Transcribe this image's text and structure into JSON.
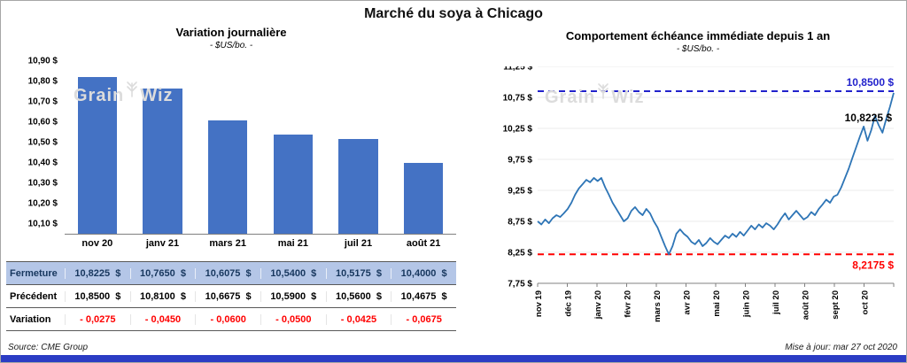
{
  "header": {
    "title": "Marché du soya à Chicago"
  },
  "watermark": {
    "part1": "Grain",
    "part2": "Wiz"
  },
  "colors": {
    "bar": "#4472C4",
    "line": "#2E75B6",
    "ref_high": "#2222CC",
    "ref_low": "#FF0000",
    "table_highlight_bg": "#B4C6E7",
    "table_highlight_text": "#17375E",
    "variation_text": "#FF0000",
    "bottom_bar": "#2B3CC4",
    "watermark": "#DCDCDC"
  },
  "left_panel": {
    "title": "Variation journalière",
    "subtitle": "- $US/bo. -",
    "table": {
      "header": [
        "nov 20",
        "janv 21",
        "mars 21",
        "mai 21",
        "juil 21",
        "août 21"
      ],
      "rows": [
        {
          "label": "Fermeture",
          "style": "highlight",
          "values": [
            "10,8225  $",
            "10,7650  $",
            "10,6075  $",
            "10,5400  $",
            "10,5175  $",
            "10,4000  $"
          ]
        },
        {
          "label": "Précédent",
          "style": "normal",
          "values": [
            "10,8500  $",
            "10,8100  $",
            "10,6675  $",
            "10,5900  $",
            "10,5600  $",
            "10,4675  $"
          ]
        },
        {
          "label": "Variation",
          "style": "negative",
          "values": [
            "- 0,0275",
            "- 0,0450",
            "- 0,0600",
            "- 0,0500",
            "- 0,0425",
            "- 0,0675"
          ]
        }
      ]
    }
  },
  "right_panel": {
    "title": "Comportement échéance immédiate depuis 1 an",
    "subtitle": "- $US/bo. -",
    "annotations": {
      "high": "10,8500 $",
      "last": "10,8225 $",
      "low": "8,2175 $"
    }
  },
  "footer": {
    "source": "Source: CME Group",
    "updated": "Mise à jour: mar 27 oct 2020"
  },
  "chart_data": [
    {
      "type": "bar",
      "title": "Variation journalière",
      "subtitle": "- $US/bo. -",
      "ylabel": "$US/bo.",
      "categories": [
        "nov 20",
        "janv 21",
        "mars 21",
        "mai 21",
        "juil 21",
        "août 21"
      ],
      "values": [
        10.8225,
        10.765,
        10.6075,
        10.54,
        10.5175,
        10.4
      ],
      "ylim": [
        10.05,
        10.9
      ],
      "yticks": [
        10.1,
        10.2,
        10.3,
        10.4,
        10.5,
        10.6,
        10.7,
        10.8,
        10.9
      ],
      "ytick_labels": [
        "10,10 $",
        "10,20 $",
        "10,30 $",
        "10,40 $",
        "10,50 $",
        "10,60 $",
        "10,70 $",
        "10,80 $",
        "10,90 $"
      ],
      "grid": "off",
      "legend": "none"
    },
    {
      "type": "line",
      "title": "Comportement échéance immédiate depuis 1 an",
      "ylabel": "$US/bo.",
      "ylim": [
        7.75,
        11.25
      ],
      "yticks": [
        7.75,
        8.25,
        8.75,
        9.25,
        9.75,
        10.25,
        10.75,
        11.25
      ],
      "ytick_labels": [
        "7,75 $",
        "8,25 $",
        "8,75 $",
        "9,25 $",
        "9,75 $",
        "10,25 $",
        "10,75 $",
        "11,25 $"
      ],
      "x_labels": [
        "nov 19",
        "déc 19",
        "janv 20",
        "févr 20",
        "mars 20",
        "avr 20",
        "mai 20",
        "juin 20",
        "juil 20",
        "août 20",
        "sept 20",
        "oct 20"
      ],
      "values": [
        8.75,
        8.7,
        8.78,
        8.72,
        8.8,
        8.85,
        8.82,
        8.88,
        8.95,
        9.05,
        9.18,
        9.28,
        9.35,
        9.42,
        9.38,
        9.45,
        9.4,
        9.45,
        9.3,
        9.18,
        9.05,
        8.95,
        8.85,
        8.75,
        8.8,
        8.92,
        8.98,
        8.9,
        8.85,
        8.95,
        8.88,
        8.75,
        8.65,
        8.5,
        8.35,
        8.2175,
        8.35,
        8.55,
        8.62,
        8.55,
        8.5,
        8.42,
        8.38,
        8.45,
        8.35,
        8.4,
        8.48,
        8.42,
        8.38,
        8.45,
        8.52,
        8.48,
        8.55,
        8.5,
        8.58,
        8.52,
        8.6,
        8.68,
        8.62,
        8.7,
        8.65,
        8.72,
        8.68,
        8.62,
        8.7,
        8.8,
        8.88,
        8.78,
        8.85,
        8.92,
        8.85,
        8.78,
        8.82,
        8.9,
        8.85,
        8.95,
        9.02,
        9.1,
        9.05,
        9.15,
        9.18,
        9.3,
        9.45,
        9.6,
        9.78,
        9.95,
        10.12,
        10.28,
        10.05,
        10.22,
        10.45,
        10.3,
        10.18,
        10.4,
        10.6,
        10.8225
      ],
      "ref_lines": [
        {
          "value": 10.85,
          "label": "10,8500 $",
          "color": "#2222CC",
          "style": "dashed"
        },
        {
          "value": 8.2175,
          "label": "8,2175 $",
          "color": "#FF0000",
          "style": "dashed"
        }
      ],
      "last_point": {
        "value": 10.8225,
        "label": "10,8225 $"
      },
      "grid": "horizontal-light",
      "legend": "none"
    }
  ]
}
